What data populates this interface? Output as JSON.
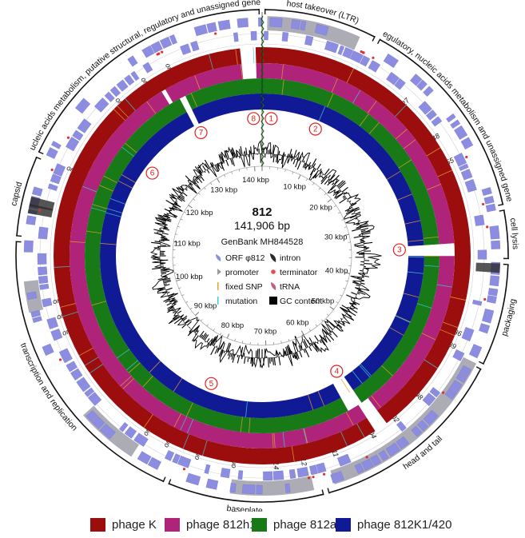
{
  "genome": {
    "name": "812",
    "length_label": "141,906 bp",
    "accession": "GenBank MH844528",
    "total_bp": 141906
  },
  "colors": {
    "phage_k": "#9c0e0e",
    "phage_812h1": "#b0237a",
    "phage_812a": "#177a17",
    "phage_812k1": "#101a94",
    "orf": "#8c8ce0",
    "gene_band": "#9d9da8",
    "gc": "#000000",
    "marker": "#e03030"
  },
  "ticks": [
    {
      "kbp": 10,
      "label": "10 kbp"
    },
    {
      "kbp": 20,
      "label": "20 kbp"
    },
    {
      "kbp": 30,
      "label": "30 kbp"
    },
    {
      "kbp": 40,
      "label": "40 kbp"
    },
    {
      "kbp": 50,
      "label": "50 kbp"
    },
    {
      "kbp": 60,
      "label": "60 kbp"
    },
    {
      "kbp": 70,
      "label": "70 kbp"
    },
    {
      "kbp": 80,
      "label": "80 kbp"
    },
    {
      "kbp": 90,
      "label": "90 kbp"
    },
    {
      "kbp": 100,
      "label": "100 kbp"
    },
    {
      "kbp": 110,
      "label": "110 kbp"
    },
    {
      "kbp": 120,
      "label": "120 kbp"
    },
    {
      "kbp": 130,
      "label": "130 kbp"
    },
    {
      "kbp": 140,
      "label": "140 kbp"
    }
  ],
  "inner_legend": [
    {
      "label": "ORF φ812",
      "icon": "orf-arrow-icon"
    },
    {
      "label": "intron",
      "icon": "intron-icon"
    },
    {
      "label": "promoter",
      "icon": "promoter-icon"
    },
    {
      "label": "terminator",
      "icon": "terminator-icon"
    },
    {
      "label": "fixed SNP",
      "icon": "fixed-snp-icon"
    },
    {
      "label": "tRNA",
      "icon": "trna-icon"
    },
    {
      "label": "mutation",
      "icon": "mutation-icon"
    },
    {
      "label": "GC content",
      "icon": "gc-content-icon"
    }
  ],
  "regions": [
    {
      "label": "host takeover (LTR)",
      "start_kbp": 0,
      "end_kbp": 11
    },
    {
      "label": "regulatory, nucleic acids metabolism and unassigned genes",
      "start_kbp": 11,
      "end_kbp": 31
    },
    {
      "label": "cell lysis",
      "start_kbp": 31,
      "end_kbp": 36
    },
    {
      "label": "packaging",
      "start_kbp": 36,
      "end_kbp": 46
    },
    {
      "label": "head and tail",
      "start_kbp": 46,
      "end_kbp": 65
    },
    {
      "label": "baseplate",
      "start_kbp": 65,
      "end_kbp": 80
    },
    {
      "label": "transcription and replication",
      "start_kbp": 80,
      "end_kbp": 108
    },
    {
      "label": "capsid",
      "start_kbp": 108,
      "end_kbp": 116
    },
    {
      "label": "nucleic acids metabolism, putative structural, regulatory and unassigned genes",
      "start_kbp": 116,
      "end_kbp": 141.9
    }
  ],
  "orf_labels": [
    {
      "label": "orf27",
      "kbp": 17
    },
    {
      "label": "orf48",
      "kbp": 22
    },
    {
      "label": "orf55",
      "kbp": 25
    },
    {
      "label": "orf86",
      "kbp": 44
    },
    {
      "label": "orf89",
      "kbp": 45.5
    },
    {
      "label": "orf98",
      "kbp": 52
    },
    {
      "label": "orf102",
      "kbp": 55.5
    },
    {
      "label": "orf104",
      "kbp": 58.5
    },
    {
      "label": "orf111",
      "kbp": 63
    },
    {
      "label": "orf112",
      "kbp": 66.5
    },
    {
      "label": "orf114",
      "kbp": 69.5
    },
    {
      "label": "orf119",
      "kbp": 74
    },
    {
      "label": "orf121",
      "kbp": 78
    },
    {
      "label": "orf123",
      "kbp": 81.5
    },
    {
      "label": "orf125",
      "kbp": 84
    },
    {
      "label": "orf133",
      "kbp": 98
    },
    {
      "label": "orf135",
      "kbp": 99.8
    },
    {
      "label": "orf138",
      "kbp": 101.5
    },
    {
      "label": "orf154",
      "kbp": 116
    },
    {
      "label": "orf167",
      "kbp": 125
    },
    {
      "label": "orf173",
      "kbp": 128.5
    },
    {
      "label": "orf180",
      "kbp": 131.5
    }
  ],
  "comparison_rings": [
    {
      "key": "phage_k",
      "name": "phage K",
      "color": "#9c0e0e"
    },
    {
      "key": "phage_812h1",
      "name": "phage 812h1",
      "color": "#b0237a"
    },
    {
      "key": "phage_812a",
      "name": "phage 812a",
      "color": "#177a17"
    },
    {
      "key": "phage_812k1",
      "name": "phage 812K1/420",
      "color": "#101a94"
    }
  ],
  "deletion_markers": [
    {
      "label": "1",
      "kbp": 1.5
    },
    {
      "label": "2",
      "kbp": 9
    },
    {
      "label": "3",
      "kbp": 34.5
    },
    {
      "label": "4",
      "kbp": 58
    },
    {
      "label": "5",
      "kbp": 79.5
    },
    {
      "label": "6",
      "kbp": 121
    },
    {
      "label": "7",
      "kbp": 131.5
    },
    {
      "label": "8",
      "kbp": 140.5
    }
  ],
  "gaps": [
    {
      "ring": 0,
      "start_kbp": 139.5,
      "end_kbp": 141.2
    },
    {
      "ring": 1,
      "start_kbp": 139.5,
      "end_kbp": 141.2
    },
    {
      "ring": 1,
      "start_kbp": 34,
      "end_kbp": 35.5
    },
    {
      "ring": 2,
      "start_kbp": 34,
      "end_kbp": 35.5
    },
    {
      "ring": 3,
      "start_kbp": 34,
      "end_kbp": 35.5
    },
    {
      "ring": 0,
      "start_kbp": 56.5,
      "end_kbp": 58
    },
    {
      "ring": 1,
      "start_kbp": 56.5,
      "end_kbp": 58
    },
    {
      "ring": 2,
      "start_kbp": 57.5,
      "end_kbp": 59.5
    },
    {
      "ring": 3,
      "start_kbp": 57.5,
      "end_kbp": 59.5
    },
    {
      "ring": 2,
      "start_kbp": 131,
      "end_kbp": 131.8
    },
    {
      "ring": 3,
      "start_kbp": 131,
      "end_kbp": 131.8
    },
    {
      "ring": 1,
      "start_kbp": 129.5,
      "end_kbp": 130
    }
  ],
  "bottom_legend": [
    {
      "name": "phage K",
      "color": "#9c0e0e"
    },
    {
      "name": "phage 812h1",
      "color": "#b0237a"
    },
    {
      "name": "phage 812a",
      "color": "#177a17"
    },
    {
      "name": "phage 812K1/420",
      "color": "#101a94"
    }
  ]
}
